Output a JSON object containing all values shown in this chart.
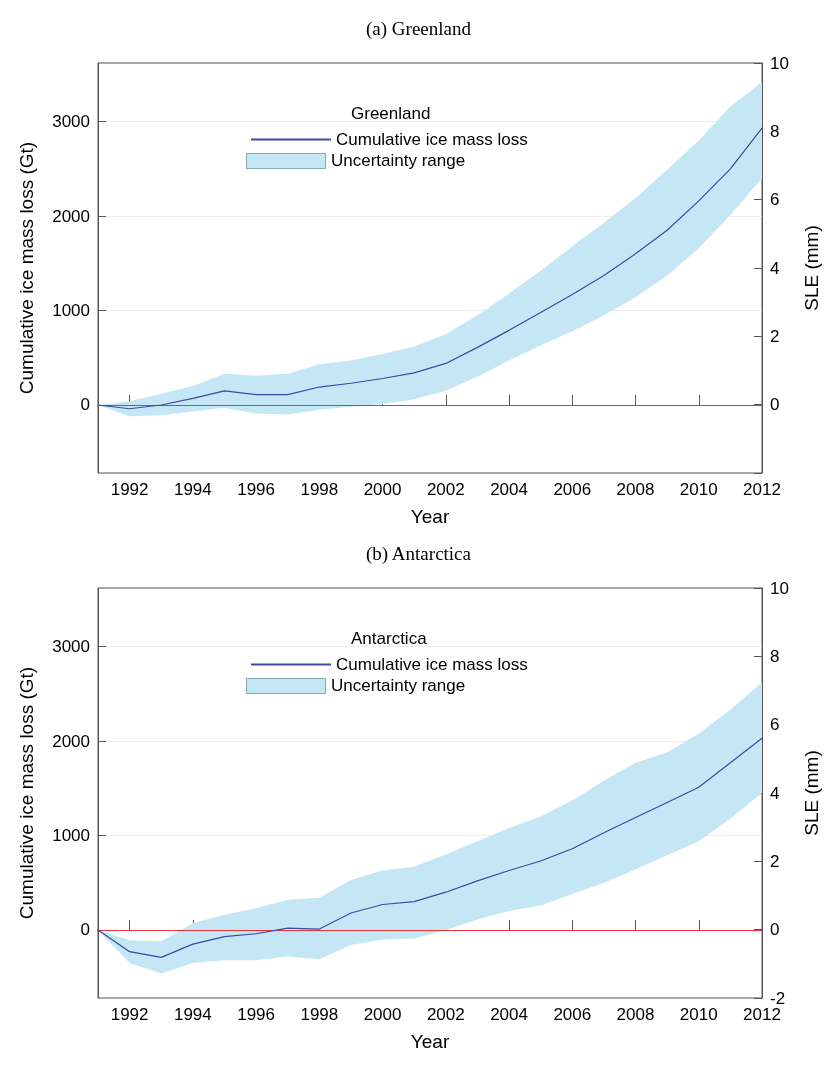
{
  "chart_data": [
    {
      "type": "line",
      "title": "(a) Greenland",
      "xlabel": "Year",
      "ylabel": "Cumulative ice mass loss (Gt)",
      "y2label": "SLE (mm)",
      "legend_title": "Greenland",
      "legend": "top",
      "grid": "y",
      "marker": "none",
      "line_style": "solid",
      "annotations": [
        "Uncertainty range"
      ],
      "x": [
        1991,
        1992,
        1993,
        1994,
        1995,
        1996,
        1997,
        1998,
        1999,
        2000,
        2001,
        2002,
        2003,
        2004,
        2005,
        2006,
        2007,
        2008,
        2009,
        2010,
        2011,
        2012
      ],
      "xlim": [
        1991,
        2012
      ],
      "xticks": [
        1992,
        1994,
        1996,
        1998,
        2000,
        2002,
        2004,
        2006,
        2008,
        2010,
        2012
      ],
      "ylim": [
        -720,
        3620
      ],
      "yticks": [
        0,
        1000,
        2000,
        3000
      ],
      "y2lim": [
        -2,
        10
      ],
      "y2ticks": [
        {
          "value": -2,
          "label": null
        },
        0,
        2,
        4,
        6,
        8,
        10
      ],
      "ref_lines": [
        {
          "axis": "y",
          "value": 0,
          "color": "#e8323c"
        }
      ],
      "series": [
        {
          "name": "Cumulative ice mass loss",
          "color": "#3a4ba0",
          "values": [
            0,
            -40,
            0,
            70,
            150,
            110,
            110,
            190,
            230,
            280,
            340,
            440,
            610,
            790,
            980,
            1170,
            1370,
            1600,
            1850,
            2160,
            2500,
            2930
          ],
          "upper": [
            0,
            40,
            120,
            200,
            330,
            310,
            330,
            430,
            470,
            540,
            620,
            750,
            950,
            1180,
            1420,
            1680,
            1930,
            2190,
            2490,
            2800,
            3160,
            3420
          ],
          "lower": [
            0,
            -120,
            -110,
            -70,
            -30,
            -90,
            -100,
            -50,
            -20,
            10,
            60,
            150,
            300,
            470,
            630,
            780,
            950,
            1140,
            1370,
            1660,
            2010,
            2400
          ]
        }
      ]
    },
    {
      "type": "line",
      "title": "(b) Antarctica",
      "xlabel": "Year",
      "ylabel": "Cumulative ice mass loss (Gt)",
      "y2label": "SLE (mm)",
      "legend_title": "Antarctica",
      "legend": "top",
      "grid": "y",
      "marker": "none",
      "line_style": "solid",
      "annotations": [
        "Uncertainty range"
      ],
      "x": [
        1991,
        1992,
        1993,
        1994,
        1995,
        1996,
        1997,
        1998,
        1999,
        2000,
        2001,
        2002,
        2003,
        2004,
        2005,
        2006,
        2007,
        2008,
        2009,
        2010,
        2011,
        2012
      ],
      "xlim": [
        1991,
        2012
      ],
      "xticks": [
        1992,
        1994,
        1996,
        1998,
        2000,
        2002,
        2004,
        2006,
        2008,
        2010,
        2012
      ],
      "ylim": [
        -720,
        3620
      ],
      "yticks": [
        0,
        1000,
        2000,
        3000
      ],
      "y2lim": [
        -2,
        10
      ],
      "y2ticks": [
        -2,
        0,
        2,
        4,
        6,
        8,
        10
      ],
      "ref_lines": [
        {
          "axis": "y",
          "value": 0,
          "color": "#e8323c"
        }
      ],
      "series": [
        {
          "name": "Cumulative ice mass loss",
          "color": "#3a4ba0",
          "values": [
            0,
            -230,
            -290,
            -150,
            -70,
            -40,
            20,
            10,
            180,
            270,
            300,
            400,
            520,
            630,
            730,
            860,
            1030,
            1190,
            1350,
            1510,
            1770,
            2030
          ],
          "upper": [
            0,
            -110,
            -120,
            70,
            160,
            230,
            320,
            340,
            530,
            630,
            670,
            800,
            940,
            1080,
            1200,
            1370,
            1580,
            1770,
            1880,
            2080,
            2330,
            2620
          ],
          "lower": [
            0,
            -350,
            -460,
            -350,
            -320,
            -320,
            -280,
            -310,
            -160,
            -100,
            -90,
            0,
            110,
            200,
            260,
            380,
            500,
            640,
            790,
            940,
            1180,
            1450
          ]
        }
      ]
    }
  ]
}
